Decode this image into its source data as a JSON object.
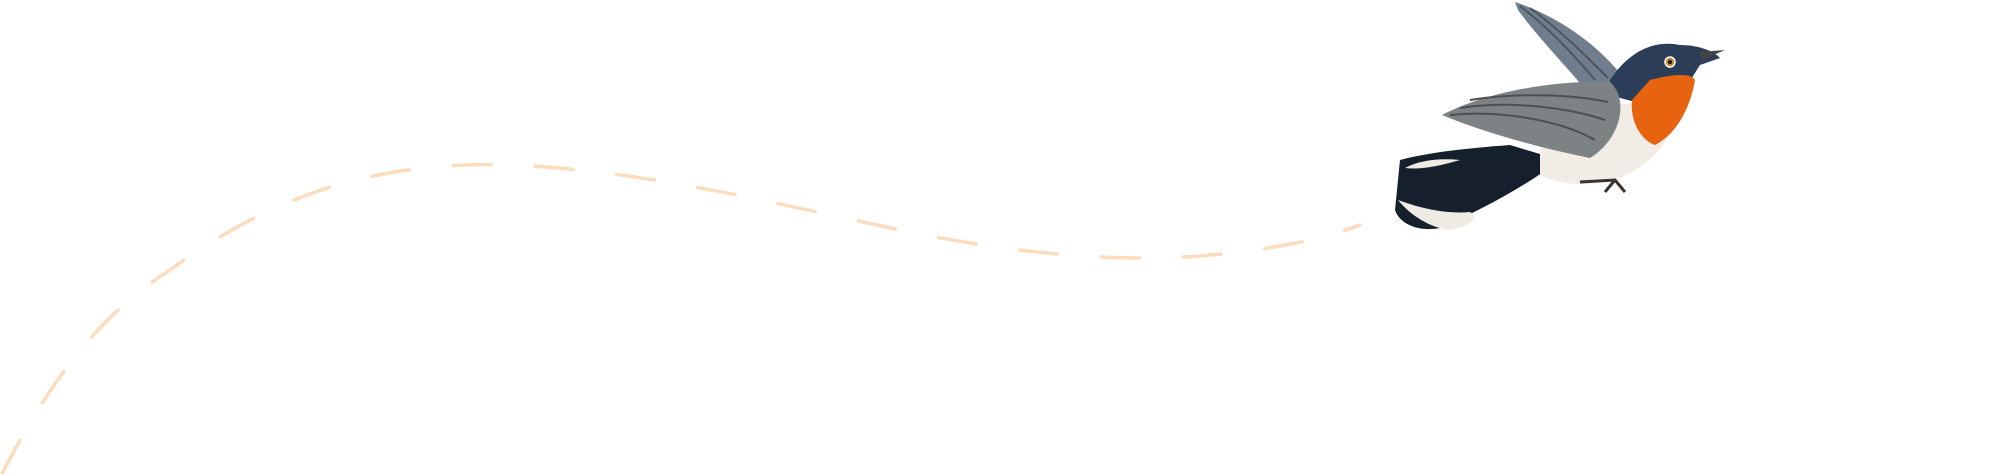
{
  "illustration": {
    "subject": "bird-in-flight",
    "path_style": "dashed",
    "colors": {
      "background": "#ffffff",
      "flight_path": "#fcdcbc",
      "bird_head": "#2c3e57",
      "bird_throat": "#e8630f",
      "bird_wing": "#7d8284",
      "bird_belly": "#f1ede6",
      "bird_tail": "#16202c"
    }
  }
}
